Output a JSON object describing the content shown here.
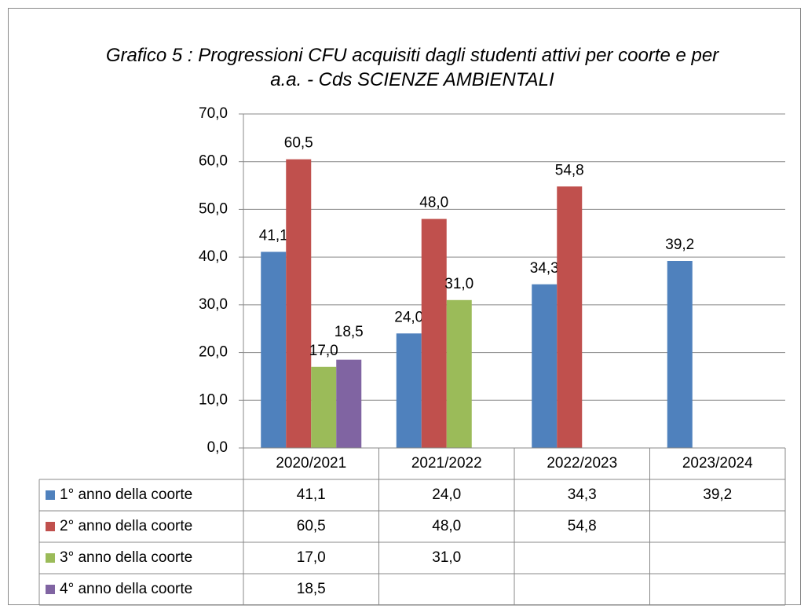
{
  "chart_data": {
    "type": "bar",
    "title": "Grafico 5 : Progressioni CFU acquisiti dagli studenti attivi per coorte e per a.a. - Cds SCIENZE AMBIENTALI",
    "categories": [
      "2020/2021",
      "2021/2022",
      "2022/2023",
      "2023/2024"
    ],
    "series": [
      {
        "name": "1° anno della coorte",
        "color": "#4f81bd",
        "values": [
          41.1,
          24.0,
          34.3,
          39.2
        ],
        "value_labels": [
          "41,1",
          "24,0",
          "34,3",
          "39,2"
        ]
      },
      {
        "name": "2° anno della coorte",
        "color": "#c0504d",
        "values": [
          60.5,
          48.0,
          54.8,
          null
        ],
        "value_labels": [
          "60,5",
          "48,0",
          "54,8",
          null
        ]
      },
      {
        "name": "3° anno della coorte",
        "color": "#9bbb59",
        "values": [
          17.0,
          31.0,
          null,
          null
        ],
        "value_labels": [
          "17,0",
          "31,0",
          null,
          null
        ]
      },
      {
        "name": "4° anno della coorte",
        "color": "#8064a2",
        "values": [
          18.5,
          null,
          null,
          null
        ],
        "value_labels": [
          "18,5",
          null,
          null,
          null
        ]
      }
    ],
    "ylim": [
      0,
      70
    ],
    "yticks": [
      {
        "value": 0,
        "label": "0,0"
      },
      {
        "value": 10,
        "label": "10,0"
      },
      {
        "value": 20,
        "label": "20,0"
      },
      {
        "value": 30,
        "label": "30,0"
      },
      {
        "value": 40,
        "label": "40,0"
      },
      {
        "value": 50,
        "label": "50,0"
      },
      {
        "value": 60,
        "label": "60,0"
      },
      {
        "value": 70,
        "label": "70,0"
      }
    ],
    "grid": true
  }
}
